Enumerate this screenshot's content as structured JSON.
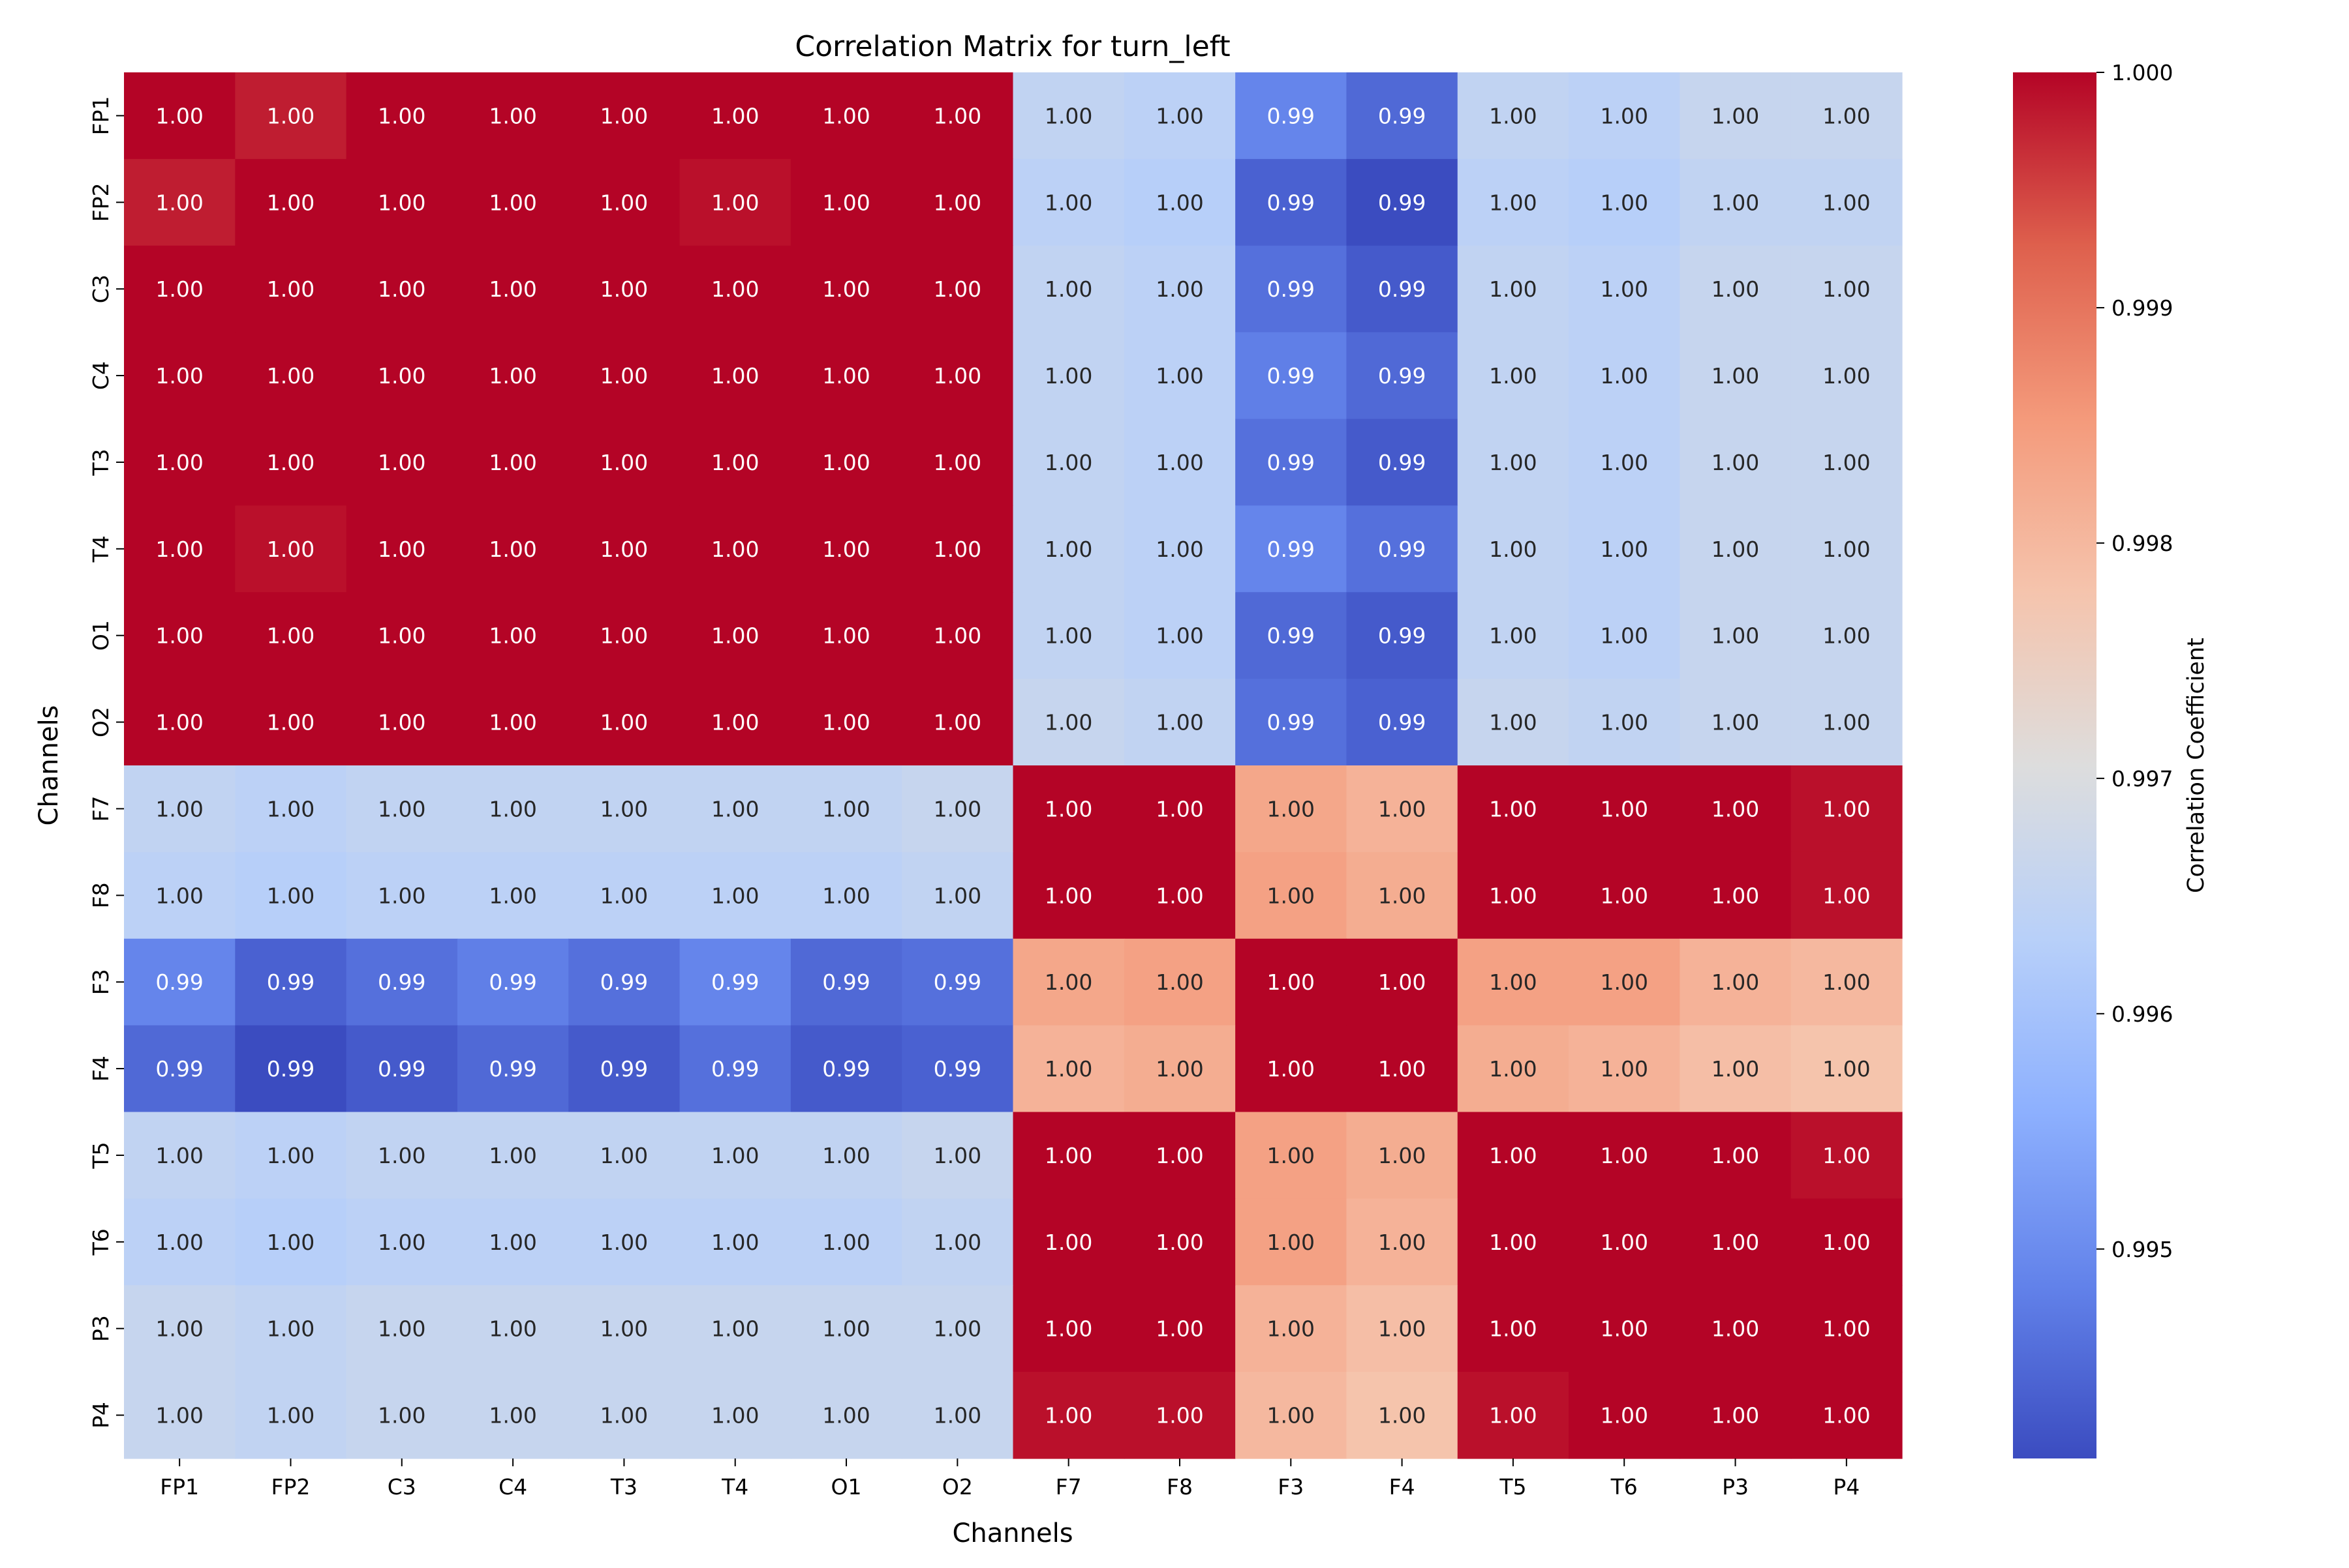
{
  "chart_data": {
    "type": "heatmap",
    "title": "Correlation Matrix for turn_left",
    "xlabel": "Channels",
    "ylabel": "Channels",
    "x_categories": [
      "FP1",
      "FP2",
      "C3",
      "C4",
      "T3",
      "T4",
      "O1",
      "O2",
      "F7",
      "F8",
      "F3",
      "F4",
      "T5",
      "T6",
      "P3",
      "P4"
    ],
    "y_categories": [
      "FP1",
      "FP2",
      "C3",
      "C4",
      "T3",
      "T4",
      "O1",
      "O2",
      "F7",
      "F8",
      "F3",
      "F4",
      "T5",
      "T6",
      "P3",
      "P4"
    ],
    "annotation_format": "2 decimals",
    "colormap": "coolwarm",
    "colorbar": {
      "label": "Correlation Coefficient",
      "range": [
        0.99411,
        1.0
      ],
      "ticks": [
        0.995,
        0.996,
        0.997,
        0.998,
        0.999,
        1.0
      ],
      "tick_labels": [
        "0.995",
        "0.996",
        "0.997",
        "0.998",
        "0.999",
        "1.000"
      ]
    },
    "values": [
      [
        1.0,
        0.9998,
        1.0,
        1.0,
        1.0,
        1.0,
        1.0,
        1.0,
        0.9965,
        0.9964,
        0.9949,
        0.9945,
        0.9965,
        0.9964,
        0.9966,
        0.9966
      ],
      [
        0.9998,
        1.0,
        1.0,
        1.0,
        1.0,
        0.9999,
        1.0,
        1.0,
        0.9964,
        0.9963,
        0.9944,
        0.9941,
        0.9964,
        0.9963,
        0.9965,
        0.9965
      ],
      [
        1.0,
        1.0,
        1.0,
        1.0,
        1.0,
        1.0,
        1.0,
        1.0,
        0.9965,
        0.9964,
        0.9946,
        0.9943,
        0.9965,
        0.9964,
        0.9966,
        0.9966
      ],
      [
        1.0,
        1.0,
        1.0,
        1.0,
        1.0,
        1.0,
        1.0,
        1.0,
        0.9965,
        0.9964,
        0.9948,
        0.9945,
        0.9965,
        0.9964,
        0.9966,
        0.9966
      ],
      [
        1.0,
        1.0,
        1.0,
        1.0,
        1.0,
        1.0,
        1.0,
        1.0,
        0.9965,
        0.9964,
        0.9946,
        0.9943,
        0.9965,
        0.9964,
        0.9966,
        0.9966
      ],
      [
        1.0,
        0.9999,
        1.0,
        1.0,
        1.0,
        1.0,
        1.0,
        1.0,
        0.9965,
        0.9964,
        0.9949,
        0.9946,
        0.9965,
        0.9964,
        0.9966,
        0.9966
      ],
      [
        1.0,
        1.0,
        1.0,
        1.0,
        1.0,
        1.0,
        1.0,
        1.0,
        0.9965,
        0.9964,
        0.9945,
        0.9943,
        0.9965,
        0.9964,
        0.9966,
        0.9966
      ],
      [
        1.0,
        1.0,
        1.0,
        1.0,
        1.0,
        1.0,
        1.0,
        1.0,
        0.9966,
        0.9965,
        0.9946,
        0.9944,
        0.9966,
        0.9965,
        0.9966,
        0.9966
      ],
      [
        0.9965,
        0.9964,
        0.9965,
        0.9965,
        0.9965,
        0.9965,
        0.9965,
        0.9966,
        1.0,
        1.0,
        0.9983,
        0.9981,
        1.0,
        1.0,
        1.0,
        0.9999
      ],
      [
        0.9964,
        0.9963,
        0.9964,
        0.9964,
        0.9964,
        0.9964,
        0.9964,
        0.9965,
        1.0,
        1.0,
        0.9984,
        0.9982,
        1.0,
        1.0,
        1.0,
        0.9999
      ],
      [
        0.9949,
        0.9944,
        0.9946,
        0.9948,
        0.9946,
        0.9949,
        0.9945,
        0.9946,
        0.9983,
        0.9984,
        1.0,
        1.0,
        0.9984,
        0.9984,
        0.9981,
        0.998
      ],
      [
        0.9945,
        0.9941,
        0.9943,
        0.9945,
        0.9943,
        0.9946,
        0.9943,
        0.9944,
        0.9981,
        0.9982,
        1.0,
        1.0,
        0.9982,
        0.9981,
        0.9979,
        0.9978
      ],
      [
        0.9965,
        0.9964,
        0.9965,
        0.9965,
        0.9965,
        0.9965,
        0.9965,
        0.9966,
        1.0,
        1.0,
        0.9984,
        0.9982,
        1.0,
        1.0,
        1.0,
        0.9999
      ],
      [
        0.9964,
        0.9963,
        0.9964,
        0.9964,
        0.9964,
        0.9964,
        0.9964,
        0.9965,
        1.0,
        1.0,
        0.9984,
        0.9981,
        1.0,
        1.0,
        1.0,
        1.0
      ],
      [
        0.9966,
        0.9965,
        0.9966,
        0.9966,
        0.9966,
        0.9966,
        0.9966,
        0.9966,
        1.0,
        1.0,
        0.9981,
        0.9979,
        1.0,
        1.0,
        1.0,
        1.0
      ],
      [
        0.9966,
        0.9965,
        0.9966,
        0.9966,
        0.9966,
        0.9966,
        0.9966,
        0.9966,
        0.9999,
        0.9999,
        0.998,
        0.9978,
        0.9999,
        1.0,
        1.0,
        1.0
      ]
    ]
  }
}
